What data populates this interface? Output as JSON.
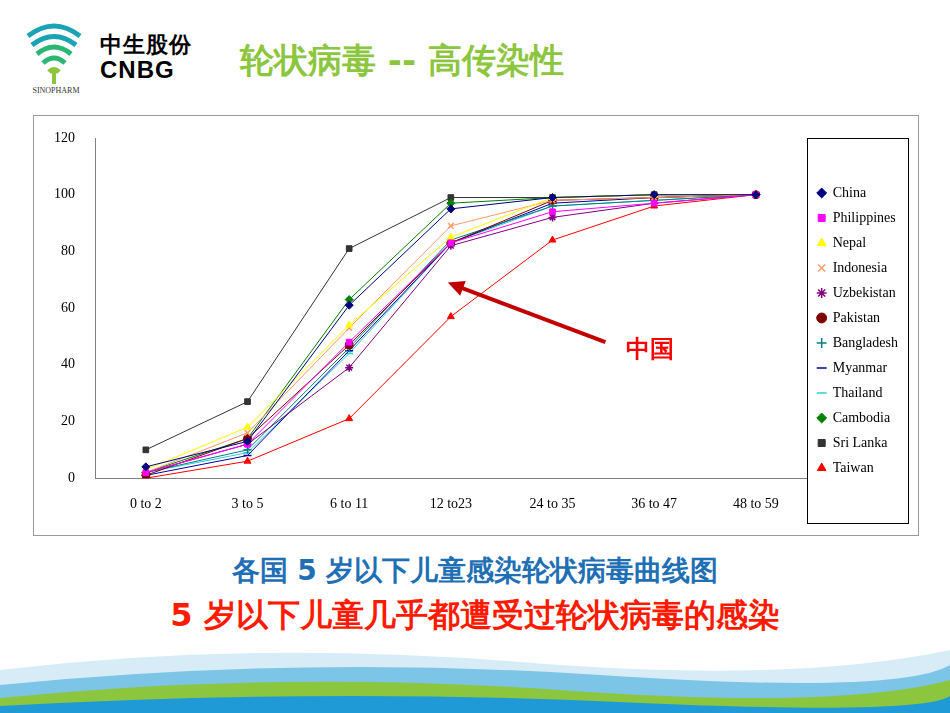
{
  "header": {
    "logo_cn": "中生股份",
    "logo_en": "CNBG",
    "logo_small": "SINOPHARM",
    "title": "轮状病毒 -- 高传染性"
  },
  "chart_data": {
    "type": "line",
    "categories": [
      "0 to 2",
      "3 to 5",
      "6 to 11",
      "12 to23",
      "24 to 35",
      "36 to 47",
      "48 to 59"
    ],
    "series": [
      {
        "name": "China",
        "color": "#000080",
        "marker": "diamond",
        "values": [
          4,
          13,
          61,
          95,
          99,
          100,
          100
        ]
      },
      {
        "name": "Philippines",
        "color": "#ff00ff",
        "marker": "square",
        "values": [
          2,
          12,
          48,
          83,
          94,
          97,
          100
        ]
      },
      {
        "name": "Nepal",
        "color": "#ffff00",
        "marker": "triangle",
        "values": [
          3,
          18,
          54,
          85,
          99,
          100,
          100
        ]
      },
      {
        "name": "Indonesia",
        "color": "#ff9966",
        "marker": "x",
        "values": [
          2,
          16,
          53,
          89,
          98,
          99,
          100
        ]
      },
      {
        "name": "Uzbekistan",
        "color": "#800080",
        "marker": "asterisk",
        "values": [
          2,
          12,
          39,
          82,
          92,
          97,
          100
        ]
      },
      {
        "name": "Pakistan",
        "color": "#800000",
        "marker": "circle",
        "values": [
          1,
          14,
          47,
          83,
          98,
          99,
          100
        ]
      },
      {
        "name": "Bangladesh",
        "color": "#008080",
        "marker": "plus",
        "values": [
          2,
          10,
          46,
          84,
          96,
          98,
          100
        ]
      },
      {
        "name": "Myanmar",
        "color": "#0000a0",
        "marker": "dash",
        "values": [
          1,
          8,
          45,
          83,
          97,
          99,
          100
        ]
      },
      {
        "name": "Thailand",
        "color": "#33cccc",
        "marker": "dash",
        "values": [
          2,
          9,
          44,
          83,
          96,
          98,
          100
        ]
      },
      {
        "name": "Cambodia",
        "color": "#008000",
        "marker": "diamond",
        "values": [
          2,
          14,
          63,
          97,
          99,
          100,
          100
        ]
      },
      {
        "name": "Sri Lanka",
        "color": "#333333",
        "marker": "square",
        "values": [
          10,
          27,
          81,
          99,
          99,
          100,
          100
        ]
      },
      {
        "name": "Taiwan",
        "color": "#ff0000",
        "marker": "triangle",
        "values": [
          0,
          6,
          21,
          57,
          84,
          96,
          100
        ]
      }
    ],
    "ylim": [
      0,
      120
    ],
    "yticks": [
      0,
      20,
      40,
      60,
      80,
      100,
      120
    ],
    "grid": false,
    "legend": "right",
    "annotations": [
      {
        "text": "中国"
      }
    ]
  },
  "captions": [
    "各国 5 岁以下儿童感染轮状病毒曲线图",
    "5 岁以下儿童几乎都遭受过轮状病毒的感染"
  ]
}
